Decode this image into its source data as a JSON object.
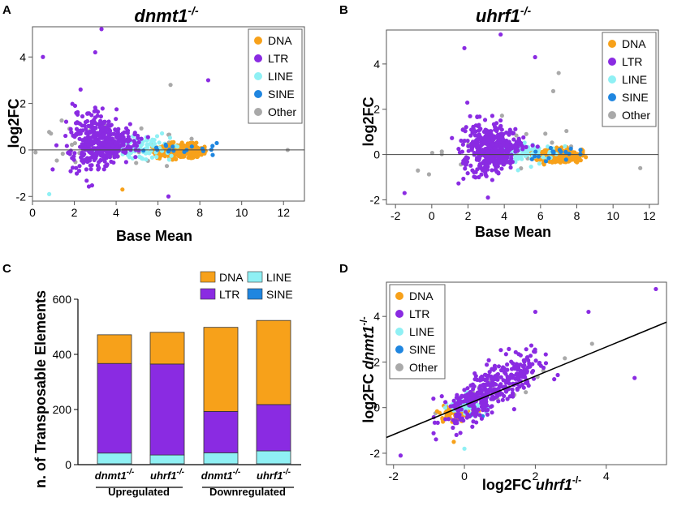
{
  "colors": {
    "DNA": "#f7a11a",
    "LTR": "#8a2be2",
    "LINE": "#8ff0f4",
    "SINE": "#1f86e0",
    "Other": "#a9a9a9"
  },
  "chart_data": [
    {
      "panel": "A",
      "type": "scatter",
      "title": "dnmt1",
      "title_sup": "-/-",
      "xlabel": "Base Mean",
      "ylabel": "log2FC",
      "xlim": [
        0,
        13
      ],
      "ylim": [
        -2.2,
        5.3
      ],
      "xticks": [
        0,
        2,
        4,
        6,
        8,
        10,
        12
      ],
      "yticks": [
        -2,
        0,
        2,
        4
      ],
      "legend": [
        "DNA",
        "LTR",
        "LINE",
        "SINE",
        "Other"
      ],
      "legend_position": "top-right",
      "reference_line": 0,
      "highlight_points": [
        {
          "x": 0.5,
          "y": 4.0,
          "category": "LTR"
        },
        {
          "x": 3.3,
          "y": 5.2,
          "category": "LTR"
        },
        {
          "x": 3.0,
          "y": 4.2,
          "category": "LTR"
        },
        {
          "x": 8.4,
          "y": 3.0,
          "category": "LTR"
        },
        {
          "x": 6.6,
          "y": 2.8,
          "category": "Other"
        },
        {
          "x": 2.3,
          "y": 2.6,
          "category": "LTR"
        },
        {
          "x": 0.8,
          "y": -1.9,
          "category": "LINE"
        },
        {
          "x": 6.5,
          "y": -2.0,
          "category": "LTR"
        },
        {
          "x": 4.3,
          "y": -1.7,
          "category": "DNA"
        },
        {
          "x": 12.2,
          "y": 0.0,
          "category": "Other"
        }
      ]
    },
    {
      "panel": "B",
      "type": "scatter",
      "title": "uhrf1",
      "title_sup": "-/-",
      "xlabel": "Base Mean",
      "ylabel": "log2FC",
      "xlim": [
        -2.5,
        12.5
      ],
      "ylim": [
        -2.2,
        5.5
      ],
      "xticks": [
        -2,
        0,
        2,
        4,
        6,
        8,
        10,
        12
      ],
      "yticks": [
        -2,
        0,
        2,
        4
      ],
      "legend": [
        "DNA",
        "LTR",
        "LINE",
        "SINE",
        "Other"
      ],
      "legend_position": "top-right",
      "reference_line": 0,
      "highlight_points": [
        {
          "x": 3.8,
          "y": 5.3,
          "category": "LTR"
        },
        {
          "x": 5.7,
          "y": 4.3,
          "category": "LTR"
        },
        {
          "x": 7.0,
          "y": 3.6,
          "category": "Other"
        },
        {
          "x": 1.8,
          "y": 4.7,
          "category": "LTR"
        },
        {
          "x": 6.7,
          "y": 2.8,
          "category": "Other"
        },
        {
          "x": -1.5,
          "y": -1.7,
          "category": "LTR"
        },
        {
          "x": 3.1,
          "y": -1.9,
          "category": "LTR"
        },
        {
          "x": 11.5,
          "y": -0.6,
          "category": "Other"
        },
        {
          "x": 10.0,
          "y": 1.5,
          "category": "Other"
        }
      ]
    },
    {
      "panel": "C",
      "type": "bar",
      "stacked": true,
      "ylabel": "n. of Transposable Elements",
      "ylim": [
        0,
        600
      ],
      "yticks": [
        0,
        200,
        400,
        600
      ],
      "categories": [
        "dnmt1",
        "uhrf1",
        "dnmt1",
        "uhrf1"
      ],
      "category_sup": "-/-",
      "groups": [
        {
          "label": "Upregulated",
          "categories": [
            0,
            1
          ]
        },
        {
          "label": "Downregulated",
          "categories": [
            2,
            3
          ]
        }
      ],
      "series": [
        {
          "name": "SINE",
          "values": [
            3,
            3,
            3,
            3
          ]
        },
        {
          "name": "LINE",
          "values": [
            39,
            32,
            40,
            47
          ]
        },
        {
          "name": "LTR",
          "values": [
            325,
            330,
            150,
            168
          ]
        },
        {
          "name": "DNA",
          "values": [
            104,
            115,
            305,
            305
          ]
        }
      ],
      "legend": [
        "DNA",
        "LINE",
        "LTR",
        "SINE"
      ],
      "legend_position": "top"
    },
    {
      "panel": "D",
      "type": "scatter",
      "xlabel": "log2FC",
      "xlabel_italic": "uhrf1",
      "xlabel_sup": "-/-",
      "ylabel": "log2FC",
      "ylabel_italic": "dnmt1",
      "ylabel_sup": "-/-",
      "xlim": [
        -2.2,
        5.7
      ],
      "ylim": [
        -2.5,
        5.5
      ],
      "xticks": [
        -2,
        0,
        2,
        4
      ],
      "yticks": [
        -2,
        0,
        2,
        4
      ],
      "legend": [
        "DNA",
        "LTR",
        "LINE",
        "SINE",
        "Other"
      ],
      "legend_position": "top-left",
      "fit_line": {
        "slope": 0.64,
        "intercept": 0.1
      },
      "highlight_points": [
        {
          "x": 5.4,
          "y": 5.2,
          "category": "LTR"
        },
        {
          "x": 3.5,
          "y": 4.2,
          "category": "LTR"
        },
        {
          "x": 2.0,
          "y": 4.2,
          "category": "LTR"
        },
        {
          "x": -1.8,
          "y": -2.1,
          "category": "LTR"
        },
        {
          "x": 0.0,
          "y": -1.8,
          "category": "LINE"
        },
        {
          "x": -0.3,
          "y": -1.5,
          "category": "DNA"
        },
        {
          "x": 4.8,
          "y": 1.3,
          "category": "LTR"
        },
        {
          "x": 3.6,
          "y": 2.8,
          "category": "Other"
        }
      ]
    }
  ],
  "text": {
    "panel_A": "A",
    "panel_B": "B",
    "panel_C": "C",
    "panel_D": "D",
    "legend_DNA": "DNA",
    "legend_LTR": "LTR",
    "legend_LINE": "LINE",
    "legend_SINE": "SINE",
    "legend_Other": "Other"
  }
}
